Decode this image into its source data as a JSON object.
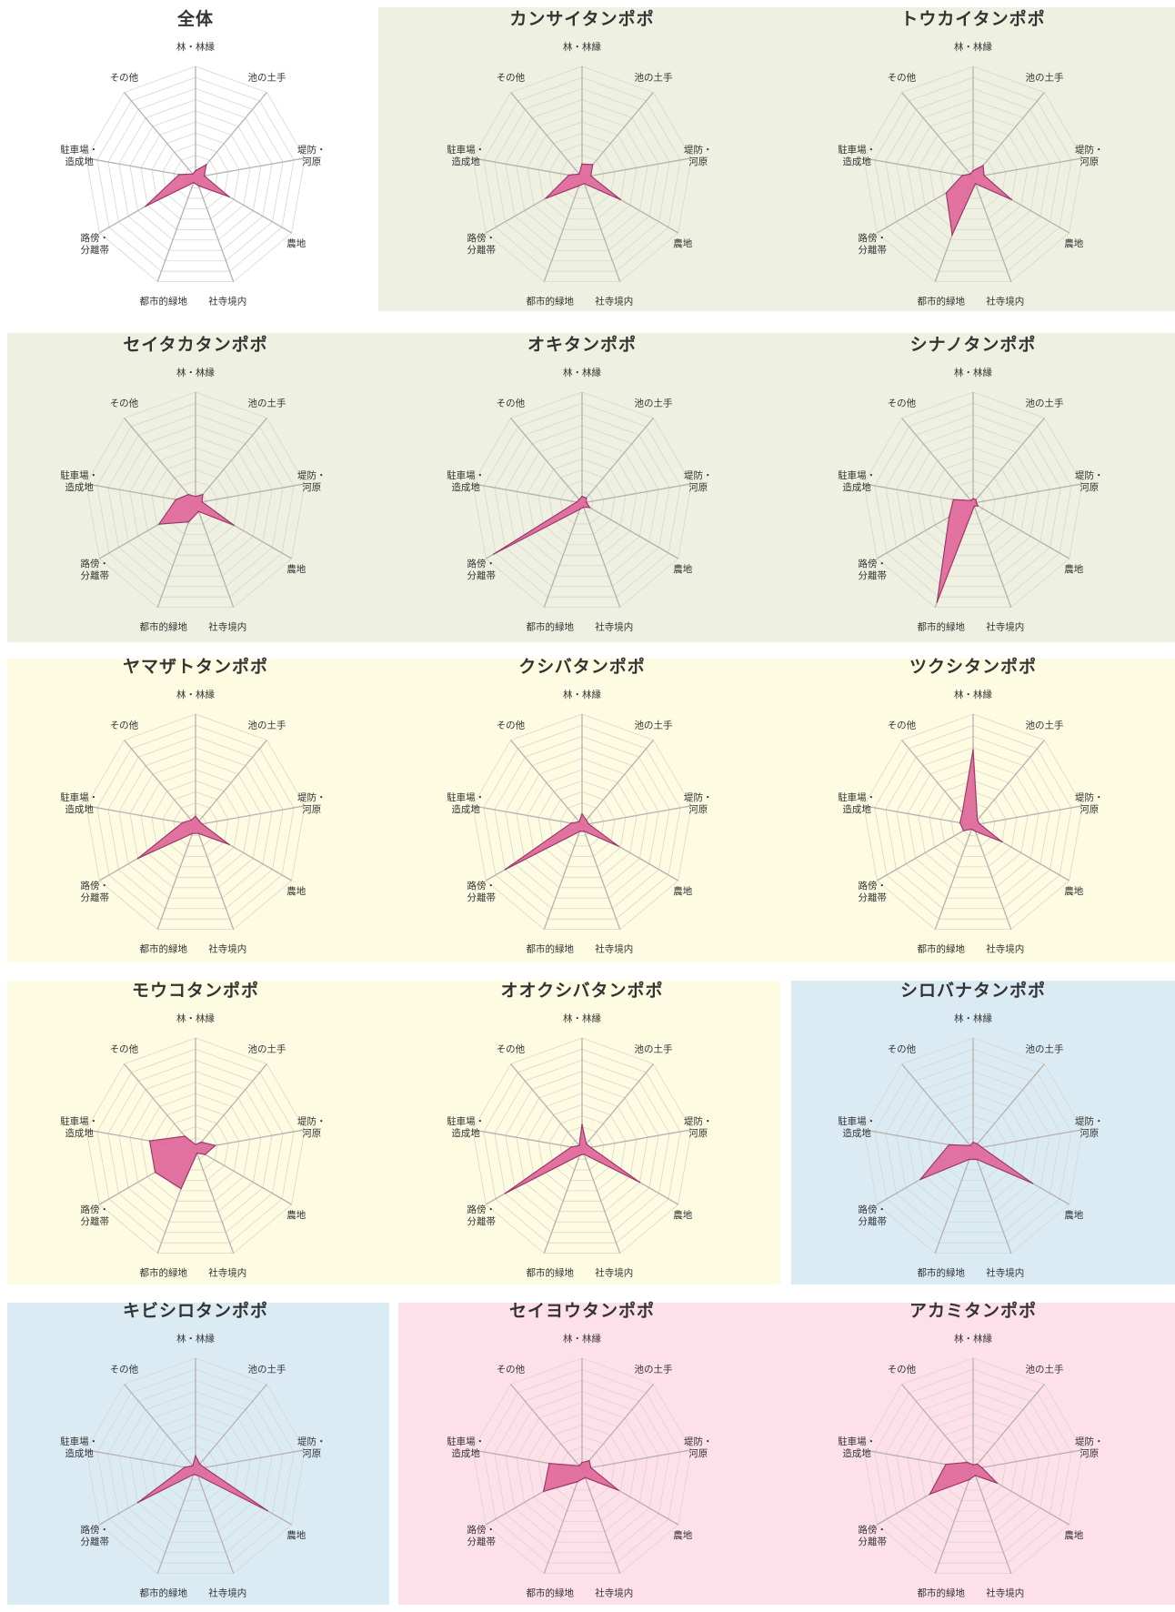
{
  "axes": [
    "林・林縁",
    "池の土手",
    "堤防・河原",
    "農地",
    "社寺境内",
    "都市的緑地",
    "路傍・分離帯",
    "駐車場・造成地",
    "その他"
  ],
  "colors": {
    "fill": "#e06b9c",
    "stroke": "#9a3a6a",
    "axis": "#b9b0b0",
    "grid": "#d9d6c9",
    "bg_white": "#ffffff",
    "bg_olive": "#eef0e2",
    "bg_yellow": "#fdfbe2",
    "bg_blue": "#dbebf3",
    "bg_pink": "#fde0ea"
  },
  "chart_data": [
    {
      "type": "radar",
      "title": "全体",
      "background": "bg_white",
      "max": 1,
      "values": [
        0.06,
        0.15,
        0.08,
        0.35,
        0.08,
        0.05,
        0.52,
        0.15,
        0.04
      ]
    },
    {
      "type": "radar",
      "title": "カンサイタンポポ",
      "background": "bg_olive",
      "max": 1,
      "values": [
        0.12,
        0.15,
        0.08,
        0.4,
        0.06,
        0.08,
        0.38,
        0.12,
        0.04
      ]
    },
    {
      "type": "radar",
      "title": "トウカイタンポポ",
      "background": "bg_olive",
      "max": 1,
      "values": [
        0.06,
        0.14,
        0.1,
        0.4,
        0.06,
        0.55,
        0.28,
        0.1,
        0.04
      ]
    },
    {
      "type": "radar",
      "title": "セイタカタンポポ",
      "background": "bg_olive",
      "max": 1,
      "values": [
        0.06,
        0.1,
        0.06,
        0.4,
        0.08,
        0.18,
        0.38,
        0.18,
        0.1
      ]
    },
    {
      "type": "radar",
      "title": "オキタンポポ",
      "background": "bg_olive",
      "max": 1,
      "values": [
        0.06,
        0.06,
        0.04,
        0.08,
        0.04,
        0.06,
        0.92,
        0.05,
        0.04
      ]
    },
    {
      "type": "radar",
      "title": "シナノタンポポ",
      "background": "bg_olive",
      "max": 1,
      "values": [
        0.04,
        0.04,
        0.03,
        0.05,
        0.03,
        0.95,
        0.25,
        0.18,
        0.03
      ]
    },
    {
      "type": "radar",
      "title": "ヤマザトタンポポ",
      "background": "bg_yellow",
      "max": 1,
      "values": [
        0.08,
        0.05,
        0.06,
        0.35,
        0.08,
        0.08,
        0.6,
        0.12,
        0.06
      ]
    },
    {
      "type": "radar",
      "title": "クシバタンポポ",
      "background": "bg_yellow",
      "max": 1,
      "values": [
        0.1,
        0.06,
        0.06,
        0.38,
        0.06,
        0.06,
        0.8,
        0.1,
        0.04
      ]
    },
    {
      "type": "radar",
      "title": "ツクシタンポポ",
      "background": "bg_yellow",
      "max": 1,
      "values": [
        0.68,
        0.06,
        0.06,
        0.3,
        0.06,
        0.04,
        0.1,
        0.12,
        0.15
      ]
    },
    {
      "type": "radar",
      "title": "モウコタンポポ",
      "background": "bg_yellow",
      "max": 1,
      "values": [
        0.04,
        0.08,
        0.18,
        0.1,
        0.04,
        0.38,
        0.42,
        0.42,
        0.15
      ]
    },
    {
      "type": "radar",
      "title": "オオクシバタンポポ",
      "background": "bg_yellow",
      "max": 1,
      "values": [
        0.22,
        0.06,
        0.08,
        0.6,
        0.05,
        0.06,
        0.8,
        0.1,
        0.04
      ]
    },
    {
      "type": "radar",
      "title": "シロバナタンポポ",
      "background": "bg_blue",
      "max": 1,
      "values": [
        0.06,
        0.06,
        0.08,
        0.62,
        0.1,
        0.1,
        0.55,
        0.22,
        0.04
      ]
    },
    {
      "type": "radar",
      "title": "キビシロタンポポ",
      "background": "bg_blue",
      "max": 1,
      "values": [
        0.12,
        0.06,
        0.08,
        0.75,
        0.06,
        0.05,
        0.6,
        0.1,
        0.04
      ]
    },
    {
      "type": "radar",
      "title": "セイヨウタンポポ",
      "background": "bg_pink",
      "max": 1,
      "values": [
        0.06,
        0.1,
        0.08,
        0.38,
        0.08,
        0.12,
        0.4,
        0.3,
        0.04
      ]
    },
    {
      "type": "radar",
      "title": "アカミタンポポ",
      "background": "bg_pink",
      "max": 1,
      "values": [
        0.04,
        0.06,
        0.08,
        0.25,
        0.06,
        0.1,
        0.45,
        0.25,
        0.08
      ]
    }
  ]
}
